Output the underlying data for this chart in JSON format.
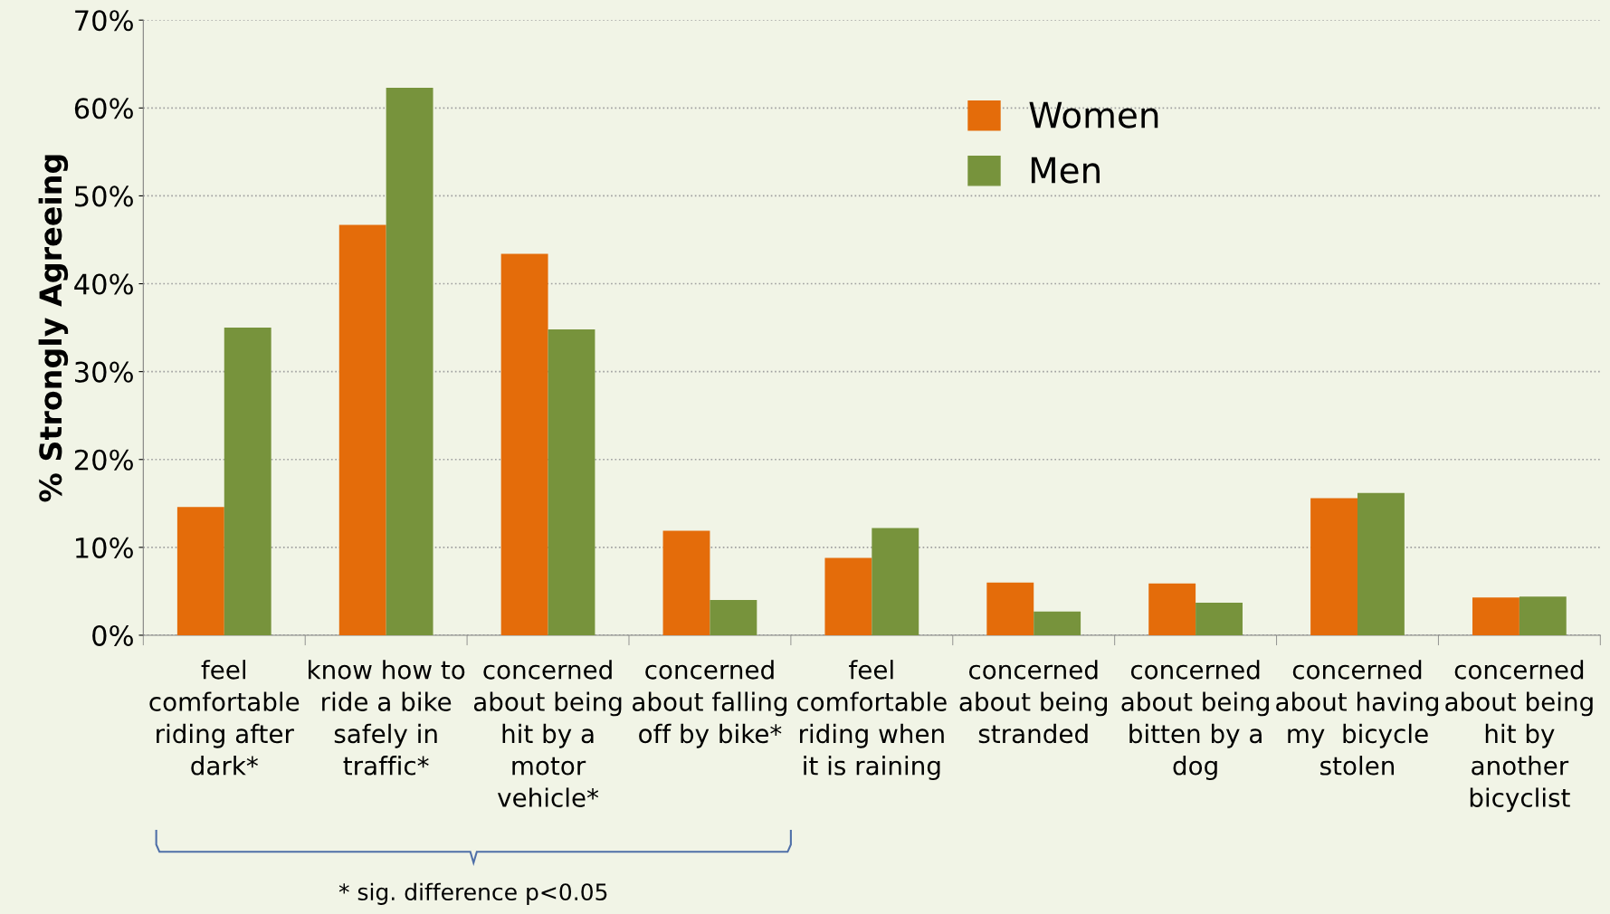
{
  "chart_data": {
    "type": "bar",
    "ylabel": "% Strongly Agreeing",
    "categories": [
      "feel\ncomfortable\nriding after\ndark*",
      "know how to\nride a bike\nsafely in\ntraffic*",
      "concerned\nabout being\nhit by a\nmotor\nvehicle*",
      "concerned\nabout falling\noff by bike*",
      "feel\ncomfortable\nriding when\nit is raining",
      "concerned\nabout being\nstranded",
      "concerned\nabout being\nbitten by a\ndog",
      "concerned\nabout having\nmy  bicycle\nstolen",
      "concerned\nabout being\nhit by\nanother\nbicyclist"
    ],
    "series": [
      {
        "name": "Women",
        "color": "#e46c0a",
        "values": [
          14.6,
          46.7,
          43.4,
          11.9,
          8.8,
          6.0,
          5.9,
          15.6,
          4.3
        ]
      },
      {
        "name": "Men",
        "color": "#77933c",
        "values": [
          35.0,
          62.3,
          34.8,
          4.0,
          12.2,
          2.7,
          3.7,
          16.2,
          4.4
        ]
      }
    ],
    "ylim": [
      0,
      70
    ],
    "yticks": [
      {
        "value": 0,
        "label": "0%"
      },
      {
        "value": 10,
        "label": "10%"
      },
      {
        "value": 20,
        "label": "20%"
      },
      {
        "value": 30,
        "label": "30%"
      },
      {
        "value": 40,
        "label": "40%"
      },
      {
        "value": 50,
        "label": "50%"
      },
      {
        "value": 60,
        "label": "60%"
      },
      {
        "value": 70,
        "label": "70%"
      }
    ],
    "grid": "y",
    "legend": "top right",
    "annotations": [
      "* sig. difference p<0.05"
    ]
  }
}
